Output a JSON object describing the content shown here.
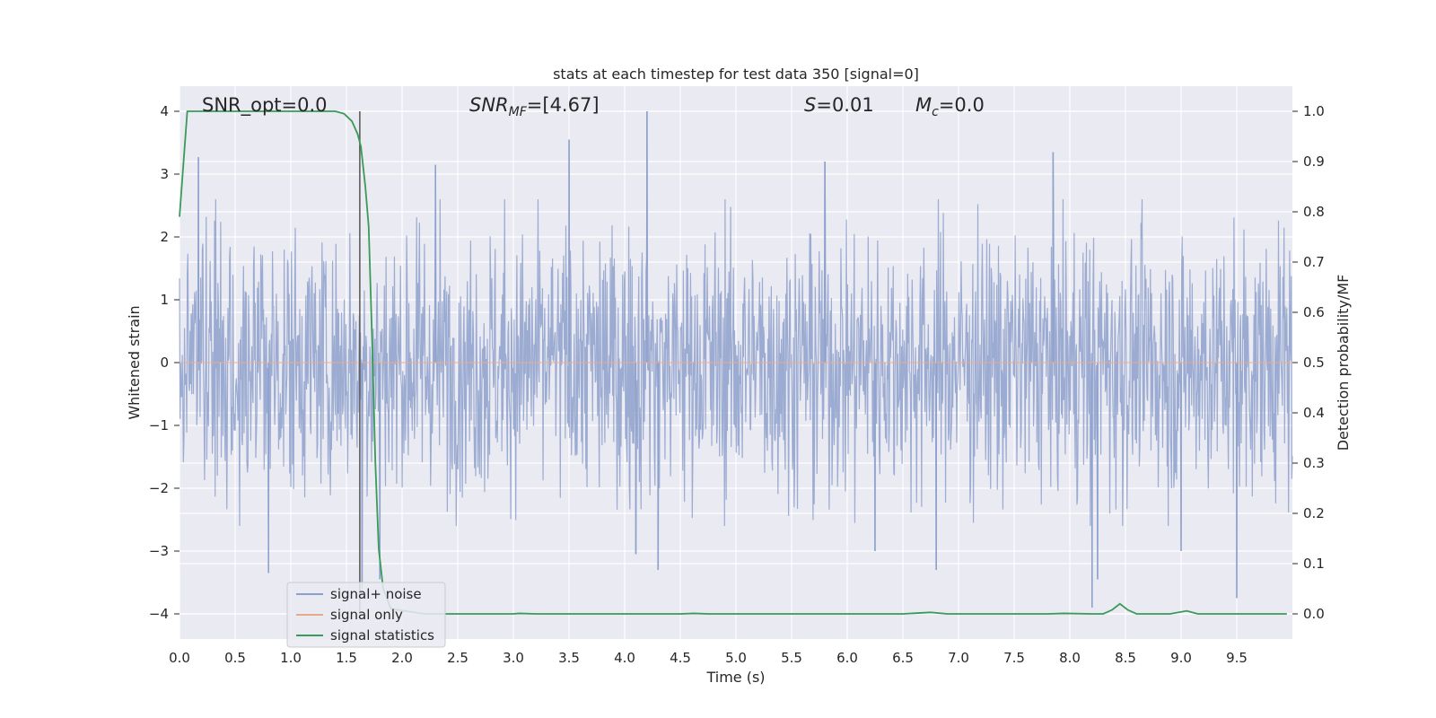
{
  "chart_data": {
    "type": "line",
    "title": "stats at each timestep for test data 350 [signal=0]",
    "xlabel": "Time (s)",
    "ylabel": "Whitened strain",
    "y2label": "Detection probability/MF",
    "xlim": [
      0,
      10
    ],
    "ylim": [
      -4.4,
      4.4
    ],
    "y2lim": [
      -0.05,
      1.05
    ],
    "x_ticks": [
      0.0,
      0.5,
      1.0,
      1.5,
      2.0,
      2.5,
      3.0,
      3.5,
      4.0,
      4.5,
      5.0,
      5.5,
      6.0,
      6.5,
      7.0,
      7.5,
      8.0,
      8.5,
      9.0,
      9.5
    ],
    "x_tick_labels": [
      "0.0",
      "0.5",
      "1.0",
      "1.5",
      "2.0",
      "2.5",
      "3.0",
      "3.5",
      "4.0",
      "4.5",
      "5.0",
      "5.5",
      "6.0",
      "6.5",
      "7.0",
      "7.5",
      "8.0",
      "8.5",
      "9.0",
      "9.5"
    ],
    "y_ticks": [
      -4,
      -3,
      -2,
      -1,
      0,
      1,
      2,
      3,
      4
    ],
    "y_tick_labels": [
      "−4",
      "−3",
      "−2",
      "−1",
      "0",
      "1",
      "2",
      "3",
      "4"
    ],
    "y2_ticks": [
      0.0,
      0.1,
      0.2,
      0.3,
      0.4,
      0.5,
      0.6,
      0.7,
      0.8,
      0.9,
      1.0
    ],
    "y2_tick_labels": [
      "0.0",
      "0.1",
      "0.2",
      "0.3",
      "0.4",
      "0.5",
      "0.6",
      "0.7",
      "0.8",
      "0.9",
      "1.0"
    ],
    "grid": true,
    "vline_x": 1.62,
    "annotations": {
      "snr_opt": "SNR_opt=0.0",
      "snr_mf_main": "SNR",
      "snr_mf_sub": "MF",
      "snr_mf_val": "=[4.67]",
      "s_main": "S",
      "s_val": "=0.01",
      "mc_main": "M",
      "mc_sub": "c",
      "mc_val": "=0.0"
    },
    "legend": {
      "placement": "lower-left",
      "entries": [
        "signal+ noise",
        "signal only",
        "signal statistics"
      ]
    },
    "series": [
      {
        "name": "signal+ noise",
        "axis": "left",
        "kind": "noise",
        "color": "#8da0cb",
        "sample_count": 2000,
        "peaks": [
          [
            0.17,
            3.27
          ],
          [
            0.8,
            -3.35
          ],
          [
            1.64,
            -3.6
          ],
          [
            1.8,
            -3.45
          ],
          [
            2.3,
            3.15
          ],
          [
            3.5,
            3.55
          ],
          [
            4.1,
            -3.05
          ],
          [
            4.2,
            4.0
          ],
          [
            4.3,
            -3.3
          ],
          [
            5.8,
            3.2
          ],
          [
            6.25,
            -3.0
          ],
          [
            6.8,
            -3.3
          ],
          [
            7.85,
            3.35
          ],
          [
            8.2,
            -3.9
          ],
          [
            8.25,
            -3.45
          ],
          [
            9.0,
            -3.0
          ],
          [
            9.5,
            -3.75
          ]
        ]
      },
      {
        "name": "signal only",
        "axis": "left",
        "color": "#e8a88a",
        "x": [
          0,
          10
        ],
        "y": [
          0,
          0
        ]
      },
      {
        "name": "signal statistics",
        "axis": "right",
        "color": "#3a9a58",
        "x": [
          0.0,
          0.07,
          0.15,
          0.5,
          1.0,
          1.4,
          1.48,
          1.55,
          1.6,
          1.63,
          1.67,
          1.7,
          1.73,
          1.76,
          1.79,
          1.83,
          1.9,
          2.2,
          2.5,
          3.0,
          3.05,
          3.2,
          4.5,
          4.62,
          4.75,
          6.5,
          6.75,
          6.9,
          7.8,
          7.95,
          8.2,
          8.3,
          8.38,
          8.45,
          8.52,
          8.6,
          8.9,
          9.05,
          9.15,
          9.5,
          9.95
        ],
        "y": [
          0.79,
          1.0,
          1.0,
          1.0,
          1.0,
          1.0,
          0.995,
          0.98,
          0.955,
          0.93,
          0.85,
          0.77,
          0.55,
          0.3,
          0.13,
          0.05,
          0.01,
          0.0,
          0.0,
          0.0,
          0.001,
          0.0,
          0.0,
          0.001,
          0.0,
          0.0,
          0.003,
          0.0,
          0.0,
          0.001,
          0.0,
          0.0,
          0.008,
          0.02,
          0.008,
          0.0,
          0.0,
          0.006,
          0.0,
          0.0,
          0.0
        ]
      }
    ]
  }
}
